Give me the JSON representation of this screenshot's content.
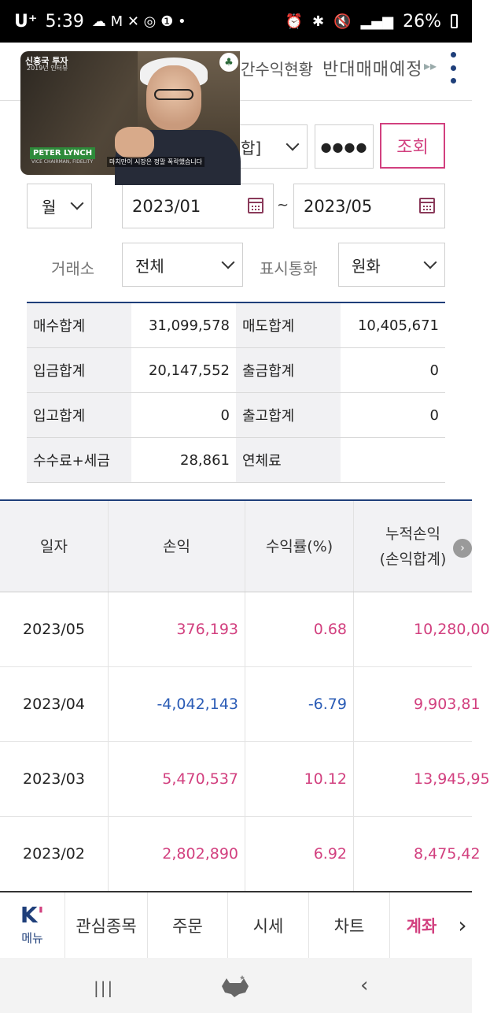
{
  "status": {
    "carrier": "U⁺",
    "time": "5:39",
    "notif_icons": [
      "chat-icon",
      "gmail-icon",
      "missed-call-icon",
      "app-icon",
      "app-icon"
    ],
    "notif_glyphs": "☁ M ✕ ◎ ❶ •",
    "battery": "26%"
  },
  "header": {
    "tab_partial": "간수익현황",
    "tab_current": "반대매매예정",
    "more_arrow": "▸▸"
  },
  "video": {
    "channel": "신흥국 투자",
    "episode": "2019년 인터뷰",
    "speaker": "PETER LYNCH",
    "speaker_role": "VICE CHAIRMAN, FIDELITY",
    "caption": "마치만이 시장은 정말 폭락했습니다"
  },
  "query": {
    "account_select": "합]",
    "password_mask": "●●●●",
    "query_button": "조회"
  },
  "period": {
    "unit": "월",
    "from": "2023/01",
    "separator": "~",
    "to": "2023/05"
  },
  "filters": {
    "exchange_label": "거래소",
    "exchange_value": "전체",
    "currency_label": "표시통화",
    "currency_value": "원화"
  },
  "summary": [
    {
      "label1": "매수합계",
      "value1": "31,099,578",
      "label2": "매도합계",
      "value2": "10,405,671"
    },
    {
      "label1": "입금합계",
      "value1": "20,147,552",
      "label2": "출금합계",
      "value2": "0"
    },
    {
      "label1": "입고합계",
      "value1": "0",
      "label2": "출고합계",
      "value2": "0"
    },
    {
      "label1": "수수료+세금",
      "value1": "28,861",
      "label2": "연체료",
      "value2": ""
    }
  ],
  "table": {
    "headers": {
      "date": "일자",
      "pnl": "손익",
      "rate": "수익률(%)",
      "cum_line1": "누적손익",
      "cum_line2": "(손익합계)"
    },
    "rows": [
      {
        "date": "2023/05",
        "pnl": "376,193",
        "rate": "0.68",
        "cum": "10,280,00"
      },
      {
        "date": "2023/04",
        "pnl": "-4,042,143",
        "rate": "-6.79",
        "cum": "9,903,81"
      },
      {
        "date": "2023/03",
        "pnl": "5,470,537",
        "rate": "10.12",
        "cum": "13,945,95"
      },
      {
        "date": "2023/02",
        "pnl": "2,802,890",
        "rate": "6.92",
        "cum": "8,475,42"
      }
    ]
  },
  "bottom_menu": {
    "home_label": "메뉴",
    "items": [
      "관심종목",
      "주문",
      "시세",
      "차트",
      "계좌"
    ],
    "next": "›"
  },
  "colors": {
    "accent": "#d2407f",
    "navy": "#1f3f7a",
    "negative": "#2b5cb6"
  }
}
